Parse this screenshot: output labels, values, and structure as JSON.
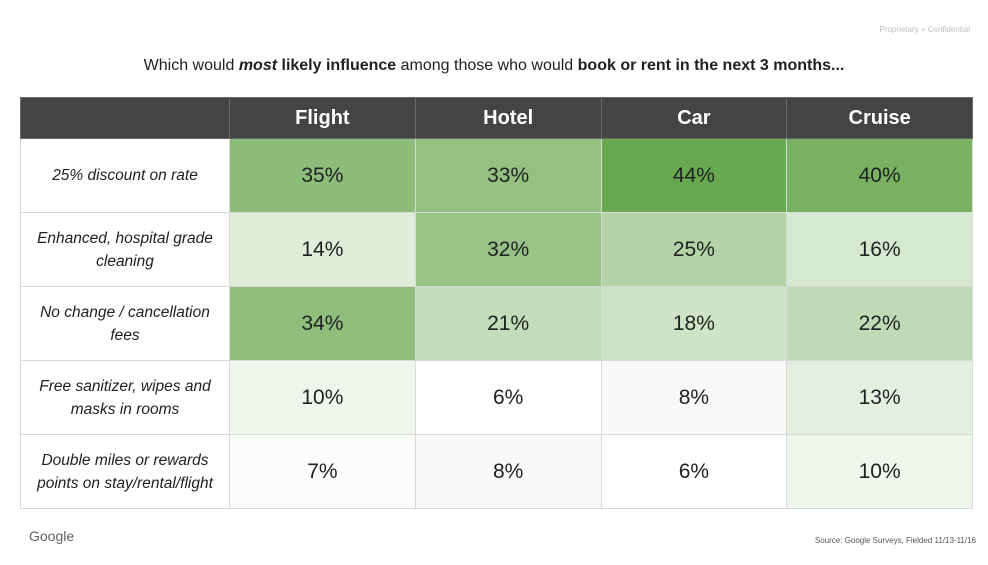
{
  "header": {
    "confidential": "Proprietary + Confidential",
    "title_parts": {
      "p1": "Which would ",
      "p2": "most",
      "p3": " likely influence",
      "p4": " among those who would ",
      "p5": "book or rent in the next 3 months..."
    }
  },
  "footer": {
    "logo": "Google",
    "source": "Source: Google Surveys, Fielded 11/13-11/16"
  },
  "colors": {
    "header_bg": "#444444",
    "scale_low": "#ffffff",
    "scale_high": "#68a84f"
  },
  "chart_data": {
    "type": "heatmap",
    "title": "Which would most likely influence among those who would book or rent in the next 3 months...",
    "columns": [
      "Flight",
      "Hotel",
      "Car",
      "Cruise"
    ],
    "rows": [
      "25% discount on rate",
      "Enhanced, hospital grade cleaning",
      "No change / cancellation fees",
      "Free sanitizer, wipes and masks in rooms",
      "Double miles or rewards points on stay/rental/flight"
    ],
    "values": [
      [
        35,
        33,
        44,
        40
      ],
      [
        14,
        32,
        25,
        16
      ],
      [
        34,
        21,
        18,
        22
      ],
      [
        10,
        6,
        8,
        13
      ],
      [
        7,
        8,
        6,
        10
      ]
    ],
    "unit": "%"
  }
}
